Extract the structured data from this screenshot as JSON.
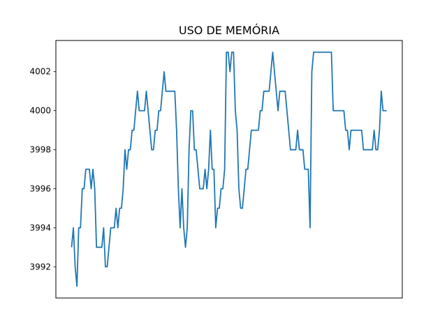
{
  "chart_data": {
    "type": "line",
    "title": "USO DE MEMÓRIA",
    "xlabel": "",
    "ylabel": "",
    "x_ticks_shown": false,
    "ylim": [
      3990.4,
      4003.6
    ],
    "yticks": [
      3992,
      3994,
      3996,
      3998,
      4000,
      4002
    ],
    "ytick_labels": [
      "3992",
      "3994",
      "3996",
      "3998",
      "4000",
      "4002"
    ],
    "grid": false,
    "line_color": "#1f77b4",
    "series": [
      {
        "values": [
          3993,
          3994,
          3992,
          3991,
          3994,
          3994,
          3996,
          3996,
          3997,
          3997,
          3997,
          3996,
          3997,
          3996,
          3993,
          3993,
          3993,
          3993,
          3994,
          3992,
          3992,
          3993,
          3994,
          3994,
          3994,
          3995,
          3994,
          3995,
          3995,
          3996,
          3998,
          3997,
          3998,
          3998,
          3999,
          3999,
          4000,
          4001,
          4000,
          4000,
          4000,
          4000,
          4001,
          4000,
          3999,
          3998,
          3998,
          3999,
          3999,
          4000,
          4000,
          4001,
          4002,
          4001,
          4001,
          4001,
          4001,
          4001,
          4001,
          3999,
          3996,
          3994,
          3996,
          3994,
          3993,
          3994,
          3998,
          4000,
          4000,
          3998,
          3998,
          3997,
          3996,
          3996,
          3996,
          3997,
          3996,
          3997,
          3999,
          3997,
          3997,
          3994,
          3995,
          3995,
          3996,
          3996,
          3997,
          4003,
          4003,
          4002,
          4003,
          4003,
          4000,
          3999,
          3996,
          3995,
          3995,
          3996,
          3997,
          3997,
          3998,
          3999,
          3999,
          3999,
          3999,
          3999,
          4000,
          4000,
          4001,
          4001,
          4001,
          4001,
          4002,
          4003,
          4002,
          4001,
          4000,
          4001,
          4001,
          4001,
          4001,
          4000,
          3999,
          3998,
          3998,
          3998,
          3998,
          3999,
          3998,
          3998,
          3998,
          3997,
          3997,
          3997,
          3994,
          4002,
          4003,
          4003,
          4003,
          4003,
          4003,
          4003,
          4003,
          4003,
          4003,
          4003,
          4003,
          4000,
          4000,
          4000,
          4000,
          4000,
          4000,
          4000,
          3999,
          3999,
          3998,
          3999,
          3999,
          3999,
          3999,
          3999,
          3999,
          3999,
          3998,
          3998,
          3998,
          3998,
          3998,
          3998,
          3999,
          3998,
          3998,
          3999,
          4001,
          4000,
          4000,
          4000
        ]
      }
    ]
  }
}
